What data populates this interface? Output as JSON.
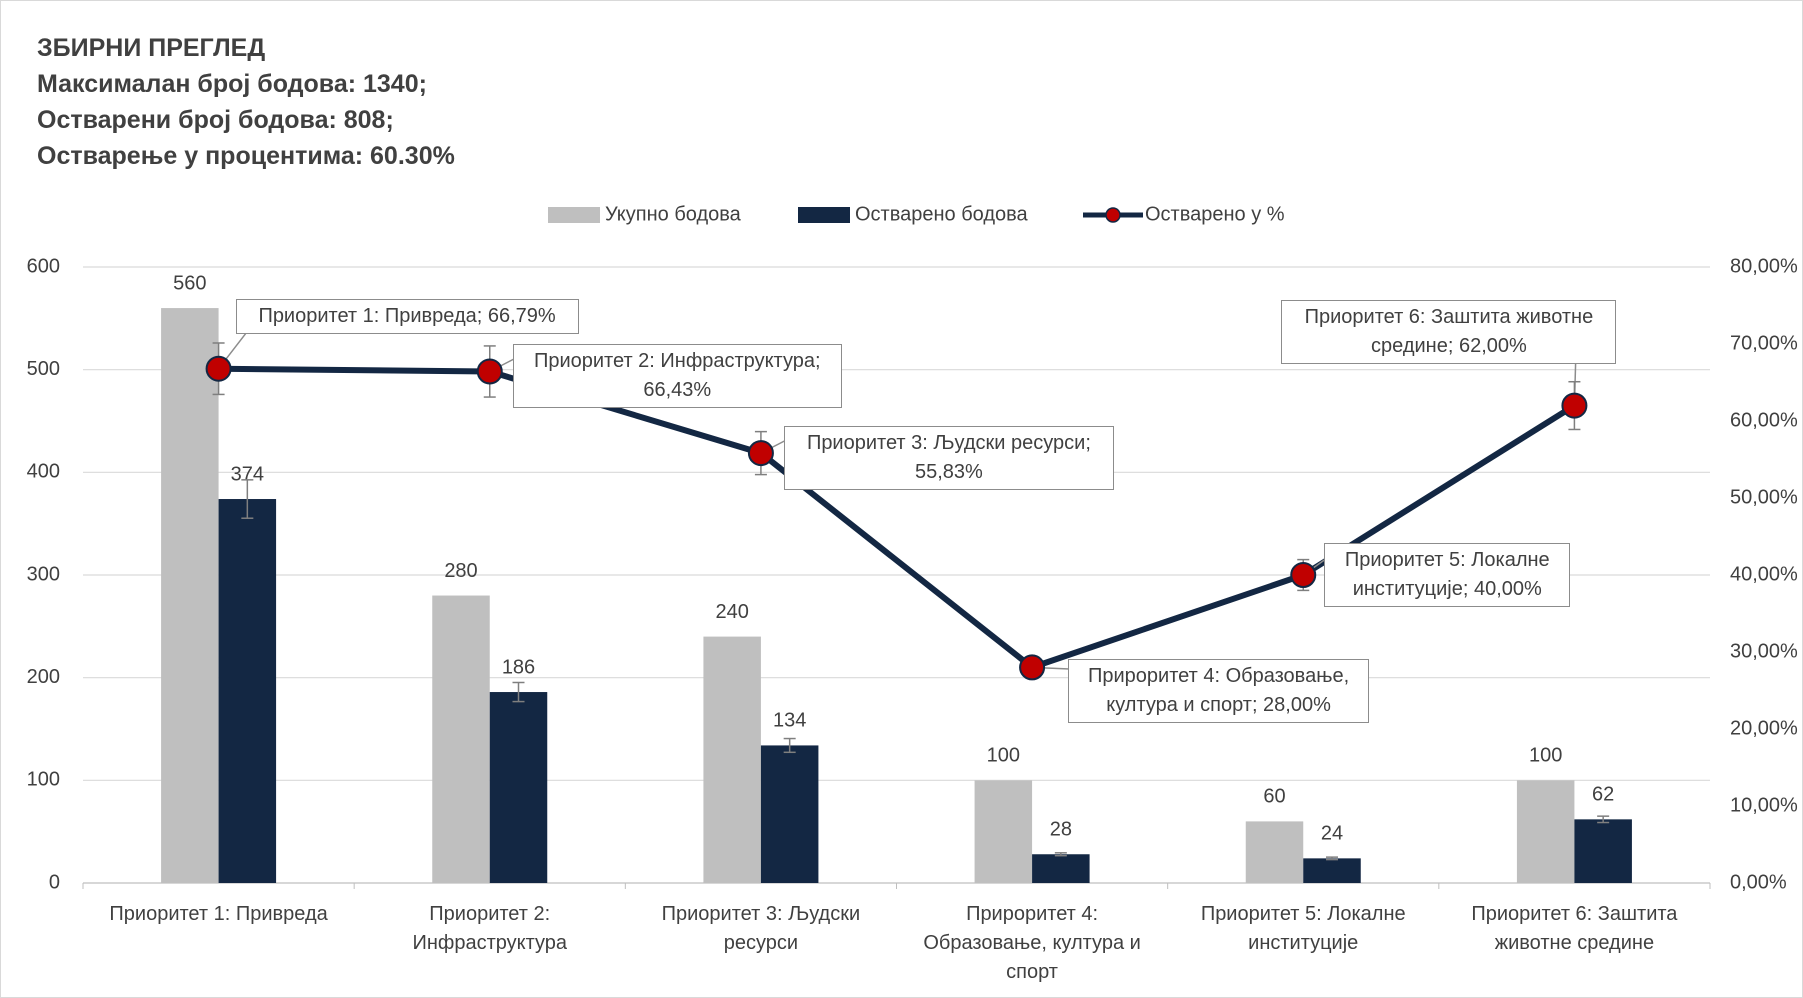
{
  "chart_data": {
    "type": "bar",
    "title_lines": [
      "ЗБИРНИ ПРЕГЛЕД",
      "Максималан број бодова: 1340;",
      "Остварени број бодова: 808;",
      "Остварење у процентима: 60.30%"
    ],
    "categories": [
      "Приоритет 1: Привреда",
      "Приоритет 2: Инфраструктура",
      "Приоритет 3: Људски ресурси",
      "Прироритет 4: Образовање, култура и спорт",
      "Приоритет 5: Локалне институције",
      "Приоритет 6: Заштита животне средине"
    ],
    "series": [
      {
        "name": "Укупно бодова",
        "type": "bar",
        "color": "#bfbfbf",
        "values": [
          560,
          280,
          240,
          100,
          60,
          100
        ]
      },
      {
        "name": "Остварено бодова",
        "type": "bar",
        "color": "#132743",
        "values": [
          374,
          186,
          134,
          28,
          24,
          62
        ],
        "errors": [
          18.7,
          9.3,
          6.7,
          1.4,
          1.2,
          3.1
        ]
      },
      {
        "name": "Остварено у %",
        "type": "line",
        "axis": "y2",
        "color": "#132743",
        "marker_color": "#c00000",
        "values": [
          66.79,
          66.43,
          55.83,
          28,
          40,
          62
        ],
        "errors": [
          3.34,
          3.32,
          2.79,
          1.4,
          2,
          3.1
        ],
        "value_labels": [
          "Приоритет 1: Привреда; 66,79%",
          "Приоритет 2: Инфраструктура; 66,43%",
          "Приоритет 3: Људски ресурси; 55,83%",
          "Прироритет 4: Образовање, култура и спорт; 28,00%",
          "Приоритет 5: Локалне институције; 40,00%",
          "Приоритет 6: Заштита животне средине; 62,00%"
        ]
      }
    ],
    "ylim": [
      0,
      600
    ],
    "yticks": [
      0,
      100,
      200,
      300,
      400,
      500,
      600
    ],
    "y2lim": [
      0,
      80
    ],
    "y2ticks": [
      {
        "value": 0,
        "label": "0,00%"
      },
      {
        "value": 10,
        "label": "10,00%"
      },
      {
        "value": 20,
        "label": "20,00%"
      },
      {
        "value": 30,
        "label": "30,00%"
      },
      {
        "value": 40,
        "label": "40,00%"
      },
      {
        "value": 50,
        "label": "50,00%"
      },
      {
        "value": 60,
        "label": "60,00%"
      },
      {
        "value": 70,
        "label": "70,00%"
      },
      {
        "value": 80,
        "label": "80,00%"
      }
    ],
    "grid": true,
    "legend": "top"
  }
}
